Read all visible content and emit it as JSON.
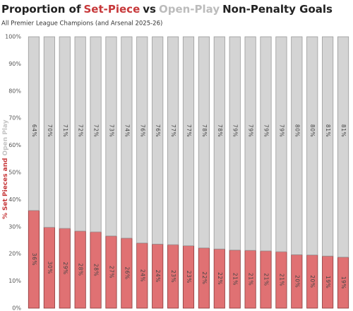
{
  "chart_data": {
    "type": "stacked_bar",
    "title": {
      "prefix": "Proportion of",
      "middle": "vs",
      "suffix": "Non-Penalty Goals"
    },
    "subtitle": "All Premier League Champions (and Arsenal 2025-26)",
    "y_label": [
      "%",
      "Set Pieces",
      "and",
      "Open Play"
    ],
    "categories": [
      null,
      null,
      null,
      null,
      null,
      null,
      null,
      null,
      null,
      null,
      null,
      null,
      null,
      null,
      null,
      null,
      null,
      null,
      null,
      null,
      null
    ],
    "series": [
      {
        "name": "Set-Piece",
        "color": "#e07173",
        "values": [
          36,
          29.8,
          29.4,
          28.4,
          28.1,
          26.6,
          25.8,
          24,
          23.6,
          23.4,
          23,
          22.2,
          21.8,
          21.4,
          21.3,
          21.1,
          20.8,
          19.7,
          19.6,
          19.2,
          18.8
        ],
        "value_labels": [
          "36%",
          "30%",
          "29%",
          "28%",
          "28%",
          "27%",
          "26%",
          "24%",
          "24%",
          "23%",
          "23%",
          "22%",
          "22%",
          "21%",
          "21%",
          "21%",
          "21%",
          "20%",
          "20%",
          "19%",
          "19%"
        ]
      },
      {
        "name": "Open-Play",
        "color": "#d4d4d4",
        "values": [
          64,
          70.2,
          70.6,
          71.6,
          71.9,
          73.4,
          74.2,
          76,
          76.4,
          76.6,
          77,
          77.8,
          78.2,
          78.6,
          78.7,
          78.9,
          79.2,
          80.3,
          80.4,
          80.8,
          81.2
        ],
        "value_labels": [
          "64%",
          "70%",
          "71%",
          "72%",
          "72%",
          "73%",
          "74%",
          "76%",
          "76%",
          "77%",
          "77%",
          "78%",
          "78%",
          "79%",
          "79%",
          "79%",
          "79%",
          "80%",
          "80%",
          "81%",
          "81%"
        ]
      }
    ],
    "ylim": [
      0,
      100
    ],
    "yticks": [
      {
        "value": 0,
        "label": "0%"
      },
      {
        "value": 10,
        "label": "10%"
      },
      {
        "value": 20,
        "label": "20%"
      },
      {
        "value": 30,
        "label": "30%"
      },
      {
        "value": 40,
        "label": "40%"
      },
      {
        "value": 50,
        "label": "50%"
      },
      {
        "value": 60,
        "label": "60%"
      },
      {
        "value": 70,
        "label": "70%"
      },
      {
        "value": 80,
        "label": "80%"
      },
      {
        "value": 90,
        "label": "90%"
      },
      {
        "value": 100,
        "label": "100%"
      }
    ],
    "grid": false
  }
}
